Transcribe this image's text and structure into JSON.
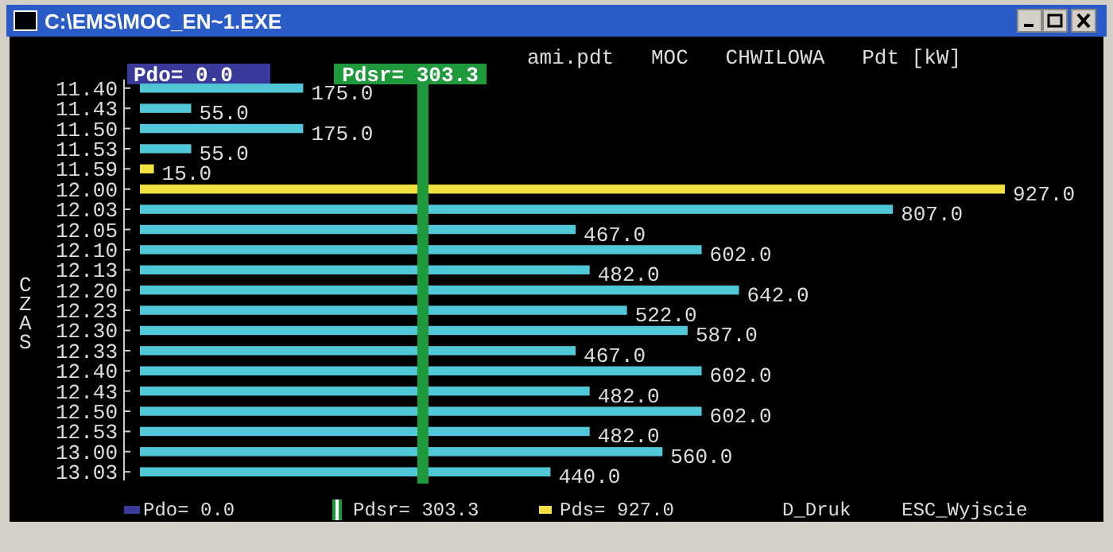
{
  "chart_data": {
    "type": "bar",
    "orientation": "horizontal",
    "title": "ami.pdt   MOC   CHWILOWA   Pdt [kW]",
    "ylabel": "CZAS",
    "categories": [
      "11.40",
      "11.43",
      "11.50",
      "11.53",
      "11.59",
      "12.00",
      "12.03",
      "12.05",
      "12.10",
      "12.13",
      "12.20",
      "12.23",
      "12.30",
      "12.33",
      "12.40",
      "12.43",
      "12.50",
      "12.53",
      "13.00",
      "13.03"
    ],
    "values": [
      175.0,
      55.0,
      175.0,
      55.0,
      15.0,
      927.0,
      807.0,
      467.0,
      602.0,
      482.0,
      642.0,
      522.0,
      587.0,
      467.0,
      602.0,
      482.0,
      602.0,
      482.0,
      560.0,
      440.0
    ],
    "colors": [
      "#50c8d8",
      "#50c8d8",
      "#50c8d8",
      "#50c8d8",
      "#f0e040",
      "#f0e040",
      "#50c8d8",
      "#50c8d8",
      "#50c8d8",
      "#50c8d8",
      "#50c8d8",
      "#50c8d8",
      "#50c8d8",
      "#50c8d8",
      "#50c8d8",
      "#50c8d8",
      "#50c8d8",
      "#50c8d8",
      "#50c8d8",
      "#50c8d8"
    ],
    "value_labels": [
      "175.0",
      "55.0",
      "175.0",
      "55.0",
      "15.0",
      "927.0",
      "807.0",
      "467.0",
      "602.0",
      "482.0",
      "642.0",
      "522.0",
      "587.0",
      "467.0",
      "602.0",
      "482.0",
      "602.0",
      "482.0",
      "560.0",
      "440.0"
    ],
    "tick_labels": "y",
    "ref_lines": [
      {
        "axis": "x",
        "value": 303.3,
        "label": "Pdsr= 303.3",
        "color": "#1e9a3c"
      }
    ],
    "annotations": [
      "C:\\EMS\\MOC_EN~1.EXE",
      "Pdo= 0.0",
      "Pdo= 0.0",
      "Pdsr= 303.3",
      "Pds= 927.0",
      "D_Druk",
      "ESC_Wyjscie"
    ]
  }
}
